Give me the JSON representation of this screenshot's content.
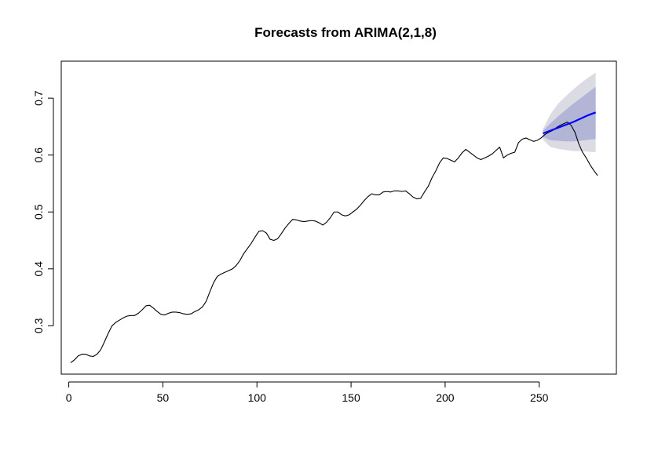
{
  "chart_data": {
    "type": "line",
    "title": "Forecasts from ARIMA(2,1,8)",
    "xlabel": "",
    "ylabel": "",
    "xlim": [
      -4,
      291
    ],
    "ylim": [
      0.215,
      0.765
    ],
    "x_ticks": [
      0,
      50,
      100,
      150,
      200,
      250
    ],
    "y_ticks": [
      0.3,
      0.4,
      0.5,
      0.6,
      0.7
    ],
    "x_tick_labels": [
      "0",
      "50",
      "100",
      "150",
      "200",
      "250"
    ],
    "y_tick_labels": [
      "0.3",
      "0.4",
      "0.5",
      "0.6",
      "0.7"
    ],
    "grid": false,
    "legend": "none",
    "colors": {
      "observed": "#000000",
      "forecast": "#0000ff",
      "band_80": "#b2b5d6",
      "band_95": "#dbdbe3"
    },
    "observed": {
      "x": [
        1,
        3,
        5,
        7,
        9,
        11,
        13,
        15,
        17,
        19,
        21,
        23,
        25,
        27,
        29,
        31,
        33,
        35,
        37,
        39,
        41,
        43,
        45,
        47,
        49,
        51,
        53,
        55,
        57,
        59,
        61,
        63,
        65,
        67,
        69,
        71,
        73,
        75,
        77,
        79,
        81,
        83,
        85,
        87,
        89,
        91,
        93,
        95,
        97,
        99,
        101,
        103,
        105,
        107,
        109,
        111,
        113,
        115,
        117,
        119,
        121,
        123,
        125,
        127,
        129,
        131,
        133,
        135,
        137,
        139,
        141,
        143,
        145,
        147,
        149,
        151,
        153,
        155,
        157,
        159,
        161,
        163,
        165,
        167,
        169,
        171,
        173,
        175,
        177,
        179,
        181,
        183,
        185,
        187,
        189,
        191,
        193,
        195,
        197,
        199,
        201,
        203,
        205,
        207,
        209,
        211,
        213,
        215,
        217,
        219,
        221,
        223,
        225,
        227,
        229,
        231,
        233,
        235,
        237,
        239,
        241,
        243,
        245,
        247,
        249,
        251,
        253,
        255,
        257,
        259,
        261,
        263,
        265,
        267,
        269,
        271,
        273,
        275,
        277,
        279,
        281
      ],
      "y": [
        0.235,
        0.24,
        0.247,
        0.25,
        0.25,
        0.247,
        0.246,
        0.25,
        0.258,
        0.272,
        0.287,
        0.3,
        0.306,
        0.31,
        0.314,
        0.317,
        0.318,
        0.318,
        0.322,
        0.328,
        0.335,
        0.336,
        0.331,
        0.325,
        0.32,
        0.319,
        0.322,
        0.324,
        0.324,
        0.323,
        0.321,
        0.32,
        0.321,
        0.325,
        0.328,
        0.333,
        0.343,
        0.36,
        0.376,
        0.387,
        0.391,
        0.394,
        0.397,
        0.4,
        0.406,
        0.415,
        0.427,
        0.436,
        0.445,
        0.456,
        0.466,
        0.467,
        0.463,
        0.452,
        0.45,
        0.453,
        0.462,
        0.472,
        0.48,
        0.487,
        0.486,
        0.484,
        0.483,
        0.484,
        0.485,
        0.484,
        0.481,
        0.477,
        0.482,
        0.49,
        0.5,
        0.5,
        0.495,
        0.493,
        0.495,
        0.5,
        0.505,
        0.512,
        0.52,
        0.527,
        0.532,
        0.53,
        0.53,
        0.535,
        0.536,
        0.535,
        0.537,
        0.537,
        0.536,
        0.537,
        0.532,
        0.526,
        0.523,
        0.524,
        0.535,
        0.545,
        0.56,
        0.572,
        0.586,
        0.595,
        0.594,
        0.591,
        0.588,
        0.595,
        0.604,
        0.61,
        0.605,
        0.6,
        0.595,
        0.592,
        0.595,
        0.598,
        0.602,
        0.608,
        0.614,
        0.595,
        0.6,
        0.603,
        0.605,
        0.622,
        0.628,
        0.63,
        0.627,
        0.624,
        0.626,
        0.63,
        0.636,
        0.64,
        0.643,
        0.648,
        0.652,
        0.655,
        0.658,
        0.652,
        0.64,
        0.62,
        0.605,
        0.595,
        0.583,
        0.573,
        0.564
      ]
    },
    "forecast": {
      "x": [
        252,
        256,
        260,
        264,
        268,
        272,
        276,
        280
      ],
      "mean": [
        0.638,
        0.643,
        0.648,
        0.653,
        0.658,
        0.664,
        0.67,
        0.675
      ],
      "lo80": [
        0.632,
        0.626,
        0.625,
        0.624,
        0.624,
        0.625,
        0.627,
        0.628
      ],
      "hi80": [
        0.643,
        0.656,
        0.668,
        0.679,
        0.69,
        0.7,
        0.71,
        0.72
      ],
      "lo95": [
        0.627,
        0.614,
        0.611,
        0.609,
        0.607,
        0.607,
        0.606,
        0.605
      ],
      "hi95": [
        0.646,
        0.672,
        0.69,
        0.703,
        0.715,
        0.726,
        0.736,
        0.745
      ]
    }
  }
}
